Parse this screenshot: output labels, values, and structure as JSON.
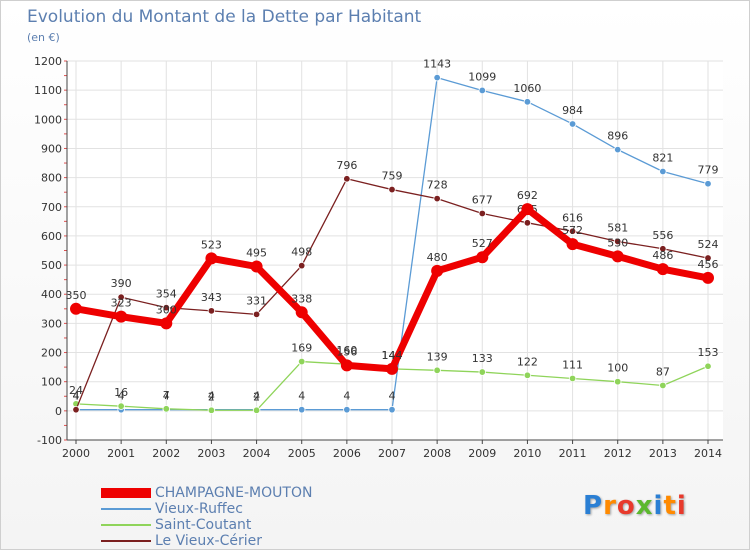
{
  "header": {
    "title": "Evolution du Montant de la Dette par Habitant",
    "subtitle": "(en €)"
  },
  "logo": {
    "text": "Proxiti",
    "colors": [
      "#2a7fd4",
      "#ff8a00",
      "#e83a2c",
      "#5cb82e"
    ]
  },
  "chart_data": {
    "type": "line",
    "title": "Evolution du Montant de la Dette par Habitant",
    "subtitle": "(en €)",
    "xlabel": "",
    "ylabel": "",
    "x": [
      "2000",
      "2001",
      "2002",
      "2003",
      "2004",
      "2005",
      "2006",
      "2007",
      "2008",
      "2009",
      "2010",
      "2011",
      "2012",
      "2013",
      "2014"
    ],
    "ylim": [
      -100,
      1200
    ],
    "yticks": [
      -100,
      0,
      100,
      200,
      300,
      400,
      500,
      600,
      700,
      800,
      900,
      1000,
      1100,
      1200
    ],
    "grid": true,
    "legend_position": "bottom-left",
    "series": [
      {
        "name": "CHAMPAGNE-MOUTON",
        "color": "#ee0000",
        "values": [
          350,
          323,
          300,
          523,
          495,
          338,
          156,
          144,
          480,
          527,
          692,
          572,
          530,
          486,
          456
        ],
        "labels": [
          "350",
          "323",
          "300",
          "523",
          "495",
          "338",
          "156",
          "144",
          "480",
          "527",
          "692",
          "572",
          "530",
          "486",
          "456"
        ]
      },
      {
        "name": "Vieux-Ruffec",
        "color": "#5b9bd5",
        "values": [
          4,
          4,
          4,
          4,
          4,
          4,
          4,
          4,
          1143,
          1099,
          1060,
          984,
          896,
          821,
          779
        ],
        "labels": [
          "4",
          "4",
          "4",
          "4",
          "4",
          "4",
          "4",
          "4",
          "1143",
          "1099",
          "1060",
          "984",
          "896",
          "821",
          "779"
        ]
      },
      {
        "name": "Saint-Coutant",
        "color": "#8fd45a",
        "values": [
          24,
          16,
          7,
          2,
          2,
          169,
          160,
          144,
          139,
          133,
          122,
          111,
          100,
          87,
          153
        ],
        "labels": [
          "24",
          "16",
          "7",
          "2",
          "2",
          "169",
          "160",
          "144",
          "139",
          "133",
          "122",
          "111",
          "100",
          "87",
          "153"
        ]
      },
      {
        "name": "Le Vieux-Cérier",
        "color": "#7b2020",
        "values": [
          4,
          390,
          354,
          343,
          331,
          498,
          796,
          759,
          728,
          677,
          645,
          616,
          581,
          556,
          524
        ],
        "labels": [
          "4",
          "390",
          "354",
          "343",
          "331",
          "498",
          "796",
          "759",
          "728",
          "677",
          "645",
          "616",
          "581",
          "556",
          "524"
        ]
      }
    ]
  }
}
